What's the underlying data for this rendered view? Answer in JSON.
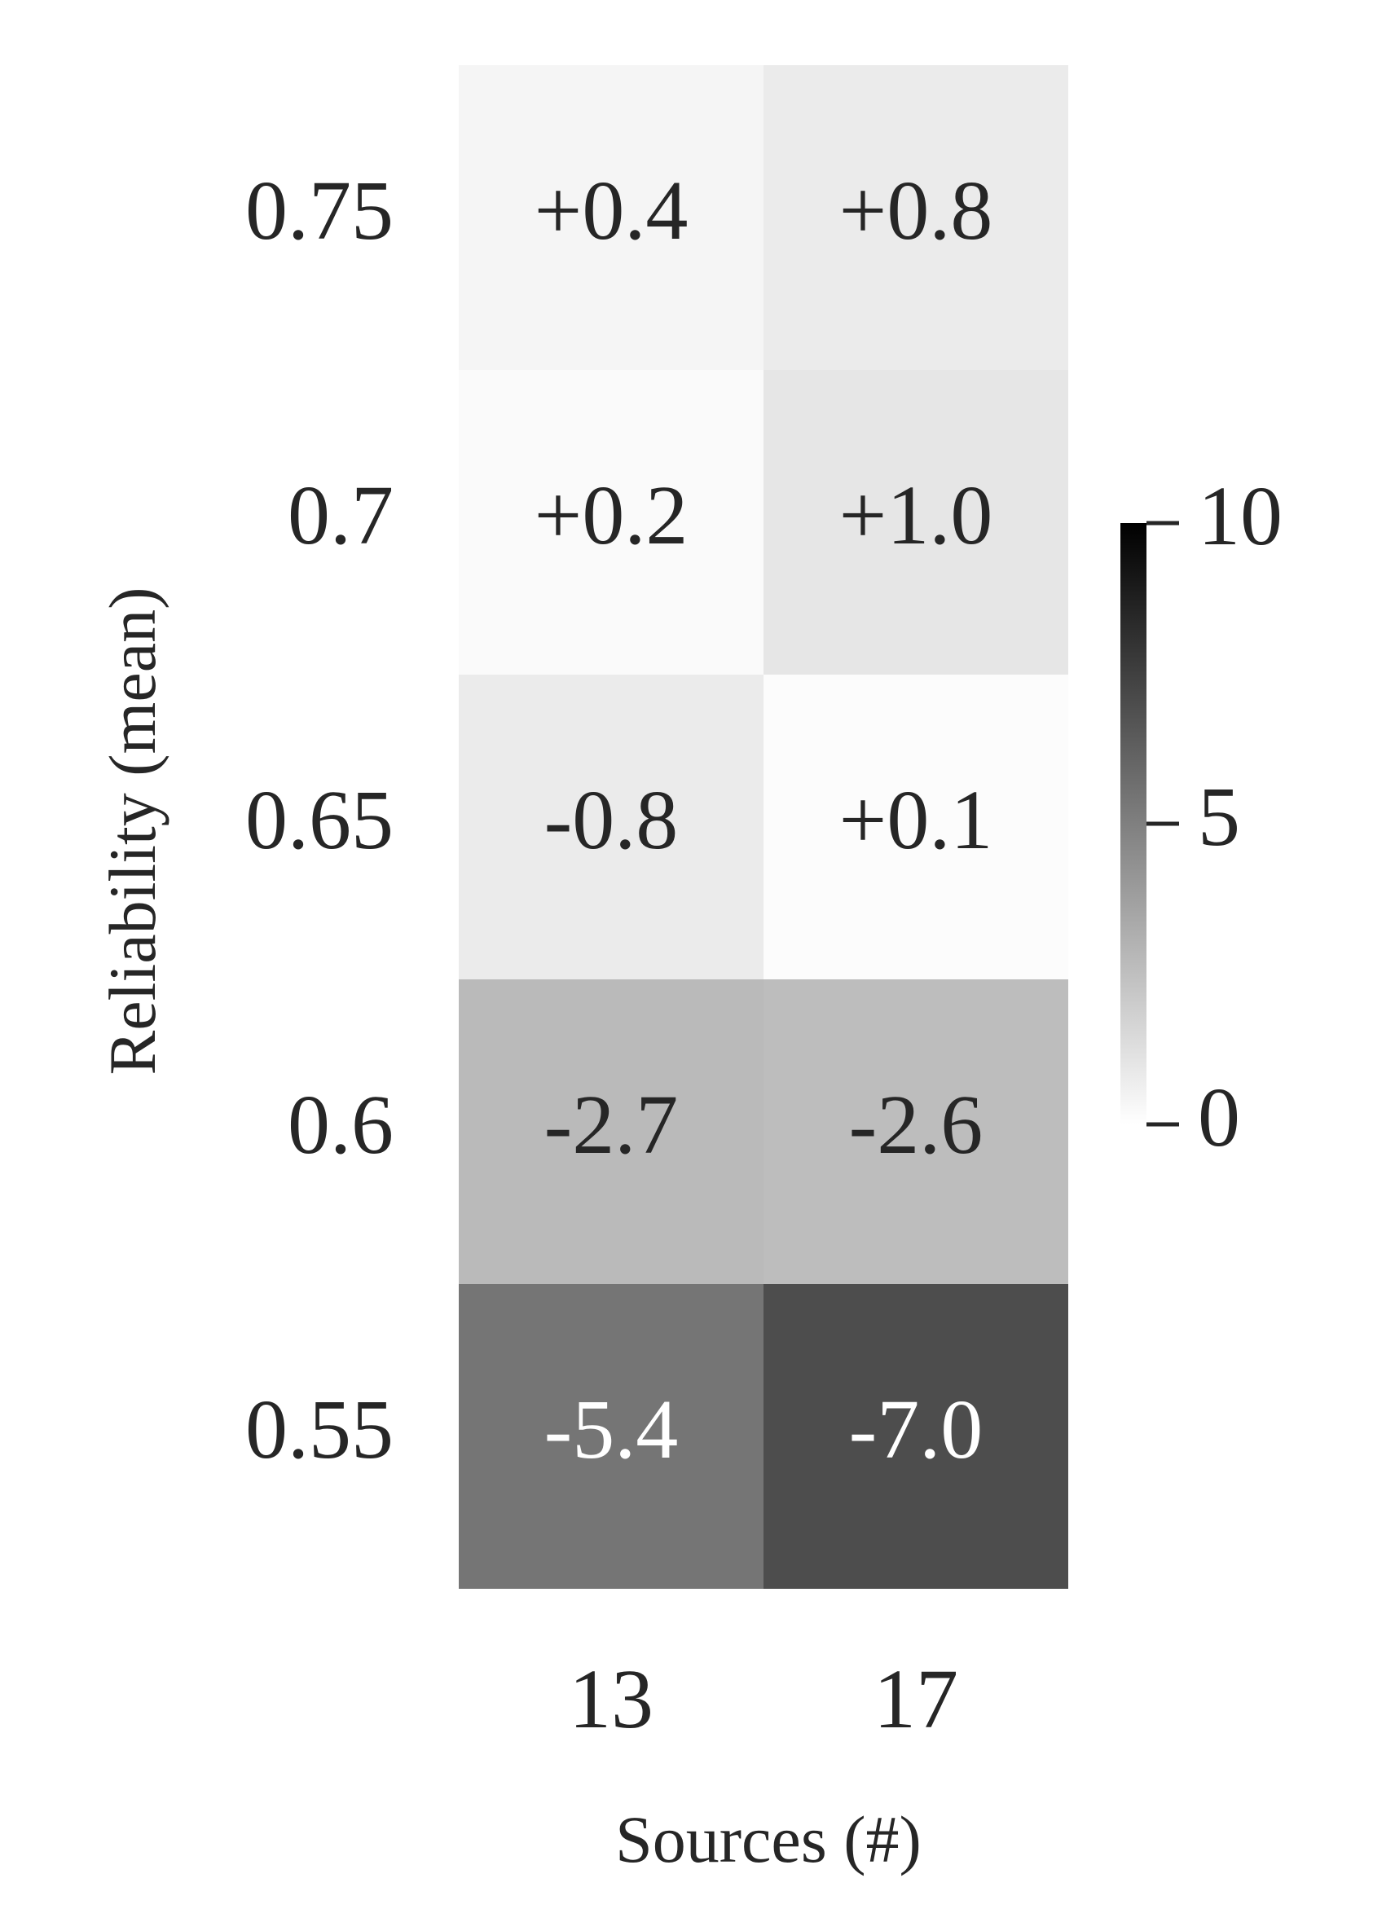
{
  "chart_data": {
    "type": "heatmap",
    "title": "",
    "xlabel": "Sources (#)",
    "ylabel": "Reliability (mean)",
    "x_categories": [
      "13",
      "17"
    ],
    "y_categories": [
      "0.75",
      "0.7",
      "0.65",
      "0.6",
      "0.55"
    ],
    "cells": [
      [
        0.4,
        0.8
      ],
      [
        0.2,
        1.0
      ],
      [
        -0.8,
        0.1
      ],
      [
        -2.7,
        -2.6
      ],
      [
        -5.4,
        -7.0
      ]
    ],
    "cell_labels": [
      [
        "+0.4",
        "+0.8"
      ],
      [
        "+0.2",
        "+1.0"
      ],
      [
        "-0.8",
        "+0.1"
      ],
      [
        "-2.7",
        "-2.6"
      ],
      [
        "-5.4",
        "-7.0"
      ]
    ],
    "color_metric": "absolute value",
    "colormap": "Greys",
    "colorbar": {
      "range": [
        0,
        10
      ],
      "ticks": [
        "0",
        "5",
        "10"
      ],
      "low_color": "#ffffff",
      "high_color": "#000000"
    },
    "grid": false,
    "text_color_dark": "#262626",
    "text_color_light": "#ffffff"
  }
}
